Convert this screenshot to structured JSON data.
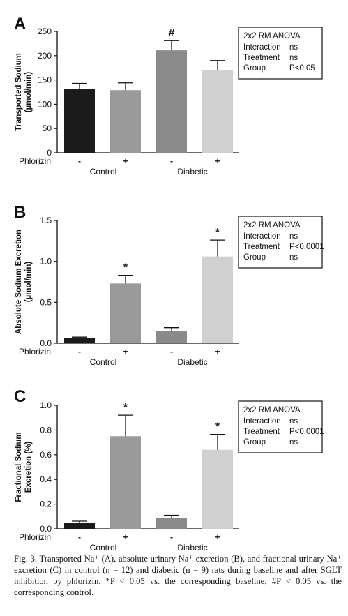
{
  "colors": {
    "control_baseline": "#1b1b1b",
    "control_phlorizin": "#9a9a9a",
    "diabetic_baseline": "#8a8a8a",
    "diabetic_phlorizin": "#d0d0d0",
    "axis": "#111111"
  },
  "chart_data": [
    {
      "type": "bar",
      "panel_letter": "A",
      "title": "",
      "ylabel": "Transported Sodium",
      "ylabel_unit": "(µmol/min)",
      "ylim": [
        0,
        250
      ],
      "yticks": [
        0,
        50,
        100,
        150,
        200,
        250
      ],
      "ytick_labels": [
        "0",
        "50",
        "100",
        "150",
        "200",
        "250"
      ],
      "row_label": "Phlorizin",
      "categories": [
        "-",
        "+",
        "-",
        "+"
      ],
      "groups": [
        "Control",
        "Diabetic"
      ],
      "values": [
        132,
        129,
        211,
        170
      ],
      "errors": [
        11,
        15,
        20,
        20
      ],
      "annotations": [
        "",
        "",
        "#",
        ""
      ],
      "stats_box": {
        "title": "2x2 RM ANOVA",
        "rows": [
          [
            "Interaction",
            "ns"
          ],
          [
            "Treatment",
            "ns"
          ],
          [
            "Group",
            "P<0.05"
          ]
        ]
      }
    },
    {
      "type": "bar",
      "panel_letter": "B",
      "title": "",
      "ylabel": "Absolute Sodium Excretion",
      "ylabel_unit": "(µmol/min)",
      "ylim": [
        0,
        1.5
      ],
      "yticks": [
        0,
        0.5,
        1.0,
        1.5
      ],
      "ytick_labels": [
        "0.0",
        "0.5",
        "1.0",
        "1.5"
      ],
      "row_label": "Phlorizin",
      "categories": [
        "-",
        "+",
        "-",
        "+"
      ],
      "groups": [
        "Control",
        "Diabetic"
      ],
      "values": [
        0.06,
        0.73,
        0.15,
        1.06
      ],
      "errors": [
        0.015,
        0.1,
        0.04,
        0.2
      ],
      "annotations": [
        "",
        "*",
        "",
        "*"
      ],
      "stats_box": {
        "title": "2x2 RM ANOVA",
        "rows": [
          [
            "Interaction",
            "ns"
          ],
          [
            "Treatment",
            "P<0.0001"
          ],
          [
            "Group",
            "ns"
          ]
        ]
      }
    },
    {
      "type": "bar",
      "panel_letter": "C",
      "title": "",
      "ylabel": "Fractional Sodium",
      "ylabel_unit": "Excretion (%)",
      "ylim": [
        0,
        1.0
      ],
      "yticks": [
        0,
        0.2,
        0.4,
        0.6,
        0.8,
        1.0
      ],
      "ytick_labels": [
        "0.0",
        "0.2",
        "0.4",
        "0.6",
        "0.8",
        "1.0"
      ],
      "row_label": "Phlorizin",
      "categories": [
        "-",
        "+",
        "-",
        "+"
      ],
      "groups": [
        "Control",
        "Diabetic"
      ],
      "values": [
        0.05,
        0.75,
        0.085,
        0.64
      ],
      "errors": [
        0.012,
        0.17,
        0.025,
        0.125
      ],
      "annotations": [
        "",
        "*",
        "",
        "*"
      ],
      "stats_box": {
        "title": "2x2 RM ANOVA",
        "rows": [
          [
            "Interaction",
            "ns"
          ],
          [
            "Treatment",
            "P<0.0001"
          ],
          [
            "Group",
            "ns"
          ]
        ]
      }
    }
  ],
  "caption": "Fig. 3. Transported Na⁺ (A), absolute urinary Na⁺ excretion (B), and fractional urinary Na⁺ excretion (C) in control (n = 12) and diabetic (n = 9) rats during baseline and after SGLT inhibition by phlorizin. *P < 0.05 vs. the corresponding baseline; #P < 0.05 vs. the corresponding control."
}
